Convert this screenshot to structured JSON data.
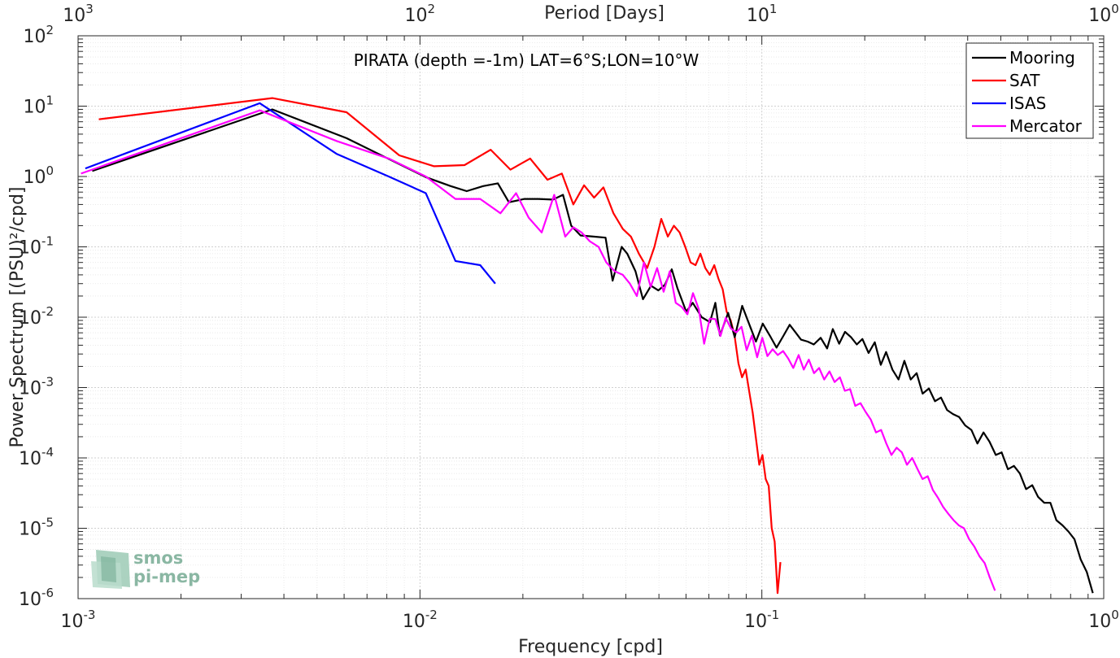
{
  "chart_data": {
    "type": "line",
    "title": "PIRATA (depth =-1m) LAT=6°S;LON=10°W",
    "xlabel": "Frequency [cpd]",
    "ylabel": "Power Spectrum [(PSU)²/cpd]",
    "x2label": "Period [Days]",
    "xscale": "log",
    "yscale": "log",
    "xlim": [
      0.001,
      1
    ],
    "ylim": [
      1e-06,
      100
    ],
    "grid": true,
    "legend_position": "top-right",
    "x_ticks": [
      0.001,
      0.01,
      0.1,
      1
    ],
    "x_tick_labels": [
      {
        "b": "10",
        "e": "-3"
      },
      {
        "b": "10",
        "e": "-2"
      },
      {
        "b": "10",
        "e": "-1"
      },
      {
        "b": "10",
        "e": "0"
      }
    ],
    "x2_ticks": [
      1000,
      100,
      10,
      1
    ],
    "x2_tick_labels": [
      {
        "b": "10",
        "e": "3"
      },
      {
        "b": "10",
        "e": "2"
      },
      {
        "b": "10",
        "e": "1"
      },
      {
        "b": "10",
        "e": "0"
      }
    ],
    "y_ticks": [
      1e-06,
      1e-05,
      0.0001,
      0.001,
      0.01,
      0.1,
      1,
      10,
      100
    ],
    "y_tick_labels": [
      {
        "b": "10",
        "e": "-6"
      },
      {
        "b": "10",
        "e": "-5"
      },
      {
        "b": "10",
        "e": "-4"
      },
      {
        "b": "10",
        "e": "-3"
      },
      {
        "b": "10",
        "e": "-2"
      },
      {
        "b": "10",
        "e": "-1"
      },
      {
        "b": "10",
        "e": "0"
      },
      {
        "b": "10",
        "e": "1"
      },
      {
        "b": "10",
        "e": "2"
      }
    ],
    "series": [
      {
        "name": "Mooring",
        "color": "#000000",
        "x": [
          0.0011,
          0.0037,
          0.0061,
          0.0087,
          0.0104,
          0.0123,
          0.0137,
          0.0153,
          0.0169,
          0.0182,
          0.0202,
          0.0222,
          0.0245,
          0.0262,
          0.0277,
          0.0295,
          0.0322,
          0.0349,
          0.0366,
          0.0389,
          0.0404,
          0.0427,
          0.0449,
          0.0474,
          0.0498,
          0.0521,
          0.0545,
          0.0566,
          0.0601,
          0.0628,
          0.0667,
          0.0705,
          0.0731,
          0.0754,
          0.0797,
          0.0833,
          0.0876,
          0.0923,
          0.0961,
          0.1006,
          0.1062,
          0.1104,
          0.1158,
          0.1206,
          0.1254,
          0.1302,
          0.1362,
          0.1419,
          0.1486,
          0.1552,
          0.1613,
          0.1683,
          0.1751,
          0.1823,
          0.1895,
          0.1968,
          0.2052,
          0.2139,
          0.2228,
          0.2309,
          0.2409,
          0.2511,
          0.2611,
          0.2725,
          0.2837,
          0.2953,
          0.3081,
          0.3209,
          0.3342,
          0.3482,
          0.3624,
          0.3778,
          0.3933,
          0.4101,
          0.4271,
          0.4449,
          0.4633,
          0.4833,
          0.5029,
          0.5245,
          0.5462,
          0.5685,
          0.5928,
          0.6178,
          0.6425,
          0.6701,
          0.6981,
          0.7269,
          0.7576,
          0.7884,
          0.8211,
          0.8563,
          0.892,
          0.929
        ],
        "y": [
          1.2,
          9.0,
          3.5,
          1.5,
          0.98,
          0.73,
          0.62,
          0.73,
          0.8,
          0.43,
          0.48,
          0.48,
          0.47,
          0.55,
          0.2,
          0.145,
          0.14,
          0.135,
          0.033,
          0.1,
          0.08,
          0.045,
          0.018,
          0.028,
          0.024,
          0.029,
          0.048,
          0.026,
          0.012,
          0.016,
          0.01,
          0.0085,
          0.016,
          0.0055,
          0.0115,
          0.0052,
          0.0145,
          0.0075,
          0.0045,
          0.0081,
          0.0052,
          0.0037,
          0.0055,
          0.0078,
          0.0061,
          0.0048,
          0.0045,
          0.0041,
          0.0051,
          0.0036,
          0.0068,
          0.0042,
          0.0062,
          0.0052,
          0.0041,
          0.0049,
          0.0031,
          0.0044,
          0.0021,
          0.0032,
          0.0018,
          0.0013,
          0.0024,
          0.0013,
          0.0016,
          0.00082,
          0.00097,
          0.00064,
          0.00072,
          0.00048,
          0.00042,
          0.00038,
          0.00029,
          0.00025,
          0.00016,
          0.00023,
          0.00017,
          0.00011,
          0.00012,
          6.9e-05,
          7.7e-05,
          6e-05,
          3.6e-05,
          4.1e-05,
          2.8e-05,
          2.3e-05,
          2.3e-05,
          1.3e-05,
          1.1e-05,
          9e-06,
          7e-06,
          3.6e-06,
          2.4e-06,
          1.2e-06
        ]
      },
      {
        "name": "SAT",
        "color": "#ff0000",
        "x": [
          0.00115,
          0.0037,
          0.0061,
          0.0087,
          0.011,
          0.0135,
          0.0161,
          0.0184,
          0.021,
          0.0236,
          0.026,
          0.0281,
          0.0302,
          0.0323,
          0.0344,
          0.0368,
          0.0392,
          0.0414,
          0.0437,
          0.0462,
          0.0485,
          0.0508,
          0.0531,
          0.0553,
          0.0575,
          0.0597,
          0.0619,
          0.064,
          0.0661,
          0.0683,
          0.0704,
          0.0726,
          0.0747,
          0.0768,
          0.0789,
          0.0811,
          0.0832,
          0.0854,
          0.0875,
          0.0897,
          0.0918,
          0.094,
          0.0961,
          0.0983,
          0.1004,
          0.1026,
          0.1047,
          0.1069,
          0.109,
          0.1112,
          0.1133
        ],
        "y": [
          6.5,
          13.0,
          8.2,
          2.0,
          1.4,
          1.45,
          2.4,
          1.25,
          1.8,
          0.9,
          1.1,
          0.4,
          0.75,
          0.5,
          0.7,
          0.3,
          0.18,
          0.14,
          0.08,
          0.05,
          0.1,
          0.25,
          0.14,
          0.2,
          0.16,
          0.1,
          0.06,
          0.055,
          0.08,
          0.05,
          0.04,
          0.055,
          0.035,
          0.025,
          0.012,
          0.009,
          0.0055,
          0.0022,
          0.0014,
          0.0018,
          0.0009,
          0.00044,
          0.00019,
          8e-05,
          0.00011,
          5e-05,
          4e-05,
          1e-05,
          6.5e-06,
          1.2e-06,
          3.3e-06
        ]
      },
      {
        "name": "ISAS",
        "color": "#0000ff",
        "x": [
          0.00105,
          0.0034,
          0.0057,
          0.0081,
          0.0104,
          0.0127,
          0.015,
          0.0166
        ],
        "y": [
          1.3,
          11.0,
          2.1,
          1.0,
          0.58,
          0.063,
          0.055,
          0.03
        ]
      },
      {
        "name": "Mercator",
        "color": "#ff00ff",
        "x": [
          0.00102,
          0.0034,
          0.0057,
          0.0081,
          0.0104,
          0.0127,
          0.015,
          0.0172,
          0.0191,
          0.0208,
          0.0227,
          0.0247,
          0.0266,
          0.0281,
          0.0297,
          0.0314,
          0.0333,
          0.0351,
          0.0371,
          0.0392,
          0.0411,
          0.0431,
          0.0452,
          0.0473,
          0.0494,
          0.0516,
          0.0538,
          0.056,
          0.0583,
          0.0606,
          0.0629,
          0.0654,
          0.0678,
          0.0704,
          0.0731,
          0.0757,
          0.0784,
          0.0812,
          0.0842,
          0.0872,
          0.0903,
          0.0935,
          0.0969,
          0.1003,
          0.1038,
          0.1075,
          0.1113,
          0.1154,
          0.1194,
          0.1236,
          0.1281,
          0.1326,
          0.1372,
          0.1421,
          0.1471,
          0.1522,
          0.1577,
          0.1632,
          0.1691,
          0.1749,
          0.1812,
          0.1876,
          0.1943,
          0.2012,
          0.2083,
          0.2157,
          0.2233,
          0.2312,
          0.2394,
          0.2479,
          0.2567,
          0.2658,
          0.2752,
          0.285,
          0.2951,
          0.3056,
          0.3164,
          0.3276,
          0.3393,
          0.3513,
          0.3638,
          0.3767,
          0.3901,
          0.4039,
          0.4182,
          0.433,
          0.4484,
          0.4643,
          0.4808
        ],
        "y": [
          1.1,
          8.7,
          3.2,
          1.8,
          1.0,
          0.48,
          0.48,
          0.3,
          0.58,
          0.26,
          0.16,
          0.55,
          0.14,
          0.19,
          0.16,
          0.12,
          0.1,
          0.06,
          0.045,
          0.04,
          0.03,
          0.02,
          0.06,
          0.027,
          0.05,
          0.023,
          0.045,
          0.016,
          0.014,
          0.011,
          0.022,
          0.013,
          0.0042,
          0.0095,
          0.0094,
          0.0054,
          0.0098,
          0.0069,
          0.0061,
          0.0073,
          0.0034,
          0.0055,
          0.0027,
          0.0051,
          0.0028,
          0.0035,
          0.0029,
          0.0033,
          0.0026,
          0.0019,
          0.0029,
          0.0018,
          0.0025,
          0.0016,
          0.0019,
          0.0013,
          0.0017,
          0.0012,
          0.0014,
          0.0009,
          0.00095,
          0.00055,
          0.0006,
          0.00045,
          0.00035,
          0.00023,
          0.00025,
          0.00016,
          0.00011,
          0.00014,
          0.00012,
          8e-05,
          0.0001,
          7e-05,
          5e-05,
          5.5e-05,
          3.5e-05,
          2.7e-05,
          2e-05,
          1.6e-05,
          1.3e-05,
          1.1e-05,
          1e-05,
          7e-06,
          5.5e-06,
          4e-06,
          3.2e-06,
          2e-06,
          1.3e-06
        ]
      }
    ],
    "logo": {
      "line1": "smos",
      "line2": "pi-mep"
    }
  }
}
